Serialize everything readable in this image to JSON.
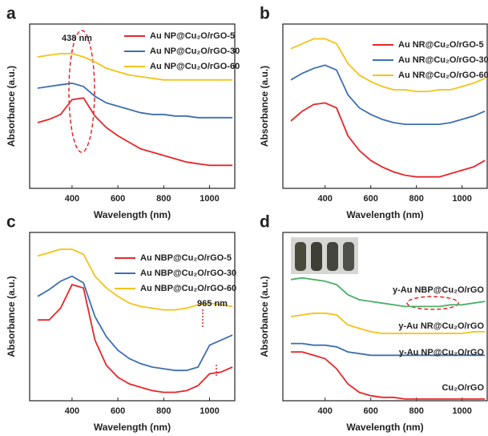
{
  "chart_data": [
    {
      "type": "line",
      "panel": "a",
      "xlabel": "Wavelength (nm)",
      "ylabel": "Absorbance (a.u.)",
      "x": [
        250,
        300,
        350,
        400,
        450,
        500,
        550,
        600,
        650,
        700,
        750,
        800,
        850,
        900,
        950,
        1000,
        1050,
        1100
      ],
      "xlim": [
        215,
        1110
      ],
      "xticks": [
        400,
        600,
        800,
        1000
      ],
      "ylim": [
        0,
        100
      ],
      "legend": true,
      "annotations": [
        "438 nm"
      ],
      "series": [
        {
          "name": "Au NP@Cu₂O/rGO-5",
          "color": "#e8262a",
          "values": [
            40,
            42,
            45,
            54,
            55,
            44,
            37,
            32,
            28,
            24,
            22,
            20,
            18,
            16,
            15,
            14,
            14,
            14
          ]
        },
        {
          "name": "Au NP@Cu₂O/rGO-30",
          "color": "#3e6fb0",
          "values": [
            61,
            62,
            63,
            64,
            62,
            56,
            52,
            50,
            48,
            46,
            45,
            45,
            44,
            44,
            43,
            43,
            43,
            43
          ]
        },
        {
          "name": "Au NP@Cu₂O/rGO-60",
          "color": "#f2c318",
          "values": [
            80,
            81,
            82,
            82,
            80,
            77,
            73,
            71,
            69,
            68,
            67,
            66,
            66,
            66,
            66,
            66,
            66,
            66
          ]
        }
      ]
    },
    {
      "type": "line",
      "panel": "b",
      "xlabel": "Wavelength (nm)",
      "ylabel": "Absorbance (a.u.)",
      "x": [
        250,
        300,
        350,
        400,
        450,
        500,
        550,
        600,
        650,
        700,
        750,
        800,
        850,
        900,
        950,
        1000,
        1050,
        1100
      ],
      "xlim": [
        215,
        1110
      ],
      "xticks": [
        400,
        600,
        800,
        1000
      ],
      "ylim": [
        0,
        100
      ],
      "legend": true,
      "series": [
        {
          "name": "Au NR@Cu₂O/rGO-5",
          "color": "#e8262a",
          "values": [
            41,
            47,
            51,
            52,
            49,
            32,
            23,
            17,
            13,
            10,
            8,
            7,
            7,
            7,
            9,
            11,
            13,
            17
          ]
        },
        {
          "name": "Au NR@Cu₂O/rGO-30",
          "color": "#3e6fb0",
          "values": [
            66,
            70,
            73,
            75,
            72,
            57,
            49,
            45,
            42,
            40,
            39,
            39,
            39,
            39,
            40,
            42,
            44,
            47
          ]
        },
        {
          "name": "Au NR@Cu₂O/rGO-60",
          "color": "#f2c318",
          "values": [
            85,
            88,
            91,
            91,
            88,
            76,
            69,
            65,
            62,
            60,
            60,
            59,
            59,
            60,
            60,
            62,
            64,
            67
          ]
        }
      ]
    },
    {
      "type": "line",
      "panel": "c",
      "xlabel": "Wavelength (nm)",
      "ylabel": "Absorbance (a.u.)",
      "x": [
        250,
        300,
        350,
        400,
        450,
        500,
        550,
        600,
        650,
        700,
        750,
        800,
        850,
        900,
        950,
        1000,
        1050,
        1100
      ],
      "xlim": [
        215,
        1110
      ],
      "xticks": [
        400,
        600,
        800,
        1000
      ],
      "ylim": [
        0,
        100
      ],
      "legend": true,
      "annotations": [
        "965 nm"
      ],
      "series": [
        {
          "name": "Au NBP@Cu₂O/rGO-5",
          "color": "#e8262a",
          "values": [
            48,
            48,
            55,
            69,
            67,
            36,
            21,
            14,
            10,
            8,
            6,
            5,
            5,
            6,
            9,
            16,
            17,
            20
          ]
        },
        {
          "name": "Au NBP@Cu₂O/rGO-30",
          "color": "#3e6fb0",
          "values": [
            62,
            66,
            71,
            74,
            70,
            50,
            38,
            30,
            25,
            22,
            20,
            19,
            18,
            18,
            20,
            33,
            36,
            39
          ]
        },
        {
          "name": "Au NBP@Cu₂O/rGO-60",
          "color": "#f2c318",
          "values": [
            86,
            88,
            90,
            90,
            87,
            74,
            67,
            62,
            58,
            56,
            55,
            54,
            54,
            55,
            57,
            58,
            57,
            56
          ]
        }
      ]
    },
    {
      "type": "line",
      "panel": "d",
      "xlabel": "Wavelength (nm)",
      "ylabel": "Absorbance (a.u.)",
      "x": [
        250,
        300,
        350,
        400,
        450,
        500,
        550,
        600,
        650,
        700,
        750,
        800,
        850,
        900,
        950,
        1000,
        1050,
        1100
      ],
      "xlim": [
        215,
        1110
      ],
      "xticks": [
        400,
        600,
        800,
        1000
      ],
      "ylim": [
        0,
        100
      ],
      "legend": false,
      "series": [
        {
          "name": "Cu₂O/rGO",
          "color": "#e8262a",
          "values": [
            29,
            29,
            27,
            25,
            19,
            10,
            5,
            3,
            2,
            2,
            1,
            1,
            1,
            1,
            1,
            1,
            1,
            1
          ]
        },
        {
          "name": "y-Au NP@Cu₂O/rGO",
          "color": "#3e6fb0",
          "values": [
            34,
            34,
            33,
            33,
            32,
            29,
            28,
            27,
            27,
            27,
            27,
            27,
            27,
            27,
            27,
            27,
            27,
            27
          ]
        },
        {
          "name": "y-Au NR@Cu₂O/rGO",
          "color": "#f2c318",
          "values": [
            50,
            51,
            52,
            52,
            51,
            45,
            43,
            41,
            40,
            40,
            40,
            40,
            40,
            40,
            40,
            40,
            41,
            41
          ]
        },
        {
          "name": "y-Au NBP@Cu₂O/rGO",
          "color": "#4caf6a",
          "values": [
            72,
            73,
            72,
            71,
            69,
            63,
            60,
            59,
            58,
            57,
            56,
            56,
            56,
            56,
            57,
            57,
            58,
            59
          ]
        }
      ]
    }
  ]
}
